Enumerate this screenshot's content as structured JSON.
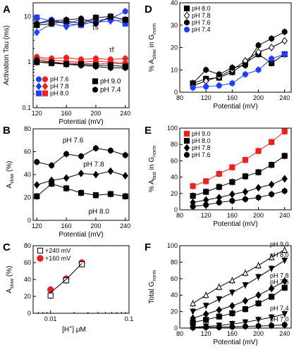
{
  "chart_data": [
    {
      "panel": "A",
      "type": "line",
      "ylabel": "Activation Tau (ms)",
      "xlabel": "Potential (mV)",
      "yscale": "log",
      "ylim": [
        0.1,
        20
      ],
      "xlim": [
        115,
        245
      ],
      "xticks": [
        "120",
        "160",
        "200",
        "240"
      ],
      "yticks": [
        "0.1",
        "1",
        "10"
      ],
      "annotations": {
        "slow": "τs",
        "fast": "τf"
      },
      "legend_left": [
        "pH 7.6",
        "pH 7.8",
        "pH 8.0"
      ],
      "legend_right": [
        "pH 9.0",
        "pH 7.4"
      ],
      "series": [
        {
          "name": "pH 7.6",
          "group": "slow",
          "color": "#1f3fff",
          "marker": "circle",
          "x": [
            120,
            140,
            160,
            180,
            200,
            220,
            240
          ],
          "values": [
            7,
            8.5,
            7,
            8.5,
            8,
            9,
            13
          ]
        },
        {
          "name": "pH 7.8",
          "group": "slow",
          "color": "#1f3fff",
          "marker": "diamond",
          "x": [
            120,
            140,
            160,
            180,
            200,
            220,
            240
          ],
          "values": [
            4.5,
            7,
            6,
            7,
            7.5,
            8,
            8.5
          ]
        },
        {
          "name": "pH 8.0",
          "group": "slow",
          "color": "#1f3fff",
          "marker": "square",
          "x": [
            120,
            140,
            160,
            180,
            200,
            220,
            240
          ],
          "values": [
            9.5,
            8,
            7,
            6.5,
            8,
            9,
            7
          ]
        },
        {
          "name": "pH 9.0",
          "group": "slow",
          "color": "#000000",
          "marker": "square",
          "x": [
            120,
            140,
            160,
            180,
            200,
            220,
            240
          ],
          "values": [
            6.5,
            7,
            8,
            7,
            9.5,
            10,
            8.5
          ]
        },
        {
          "name": "pH 7.4",
          "group": "slow",
          "color": "#000000",
          "marker": "circle",
          "x": [
            120,
            140,
            160,
            180,
            200,
            220,
            240
          ],
          "values": [
            7,
            8,
            8.5,
            9,
            7,
            10,
            8.5
          ]
        },
        {
          "name": "pH 7.6",
          "group": "fast",
          "color": "#e8231f",
          "marker": "circle",
          "x": [
            120,
            140,
            160,
            180,
            200,
            220,
            240
          ],
          "values": [
            1.3,
            1.2,
            1.25,
            1.15,
            1.2,
            1.15,
            1.2
          ]
        },
        {
          "name": "pH 7.8",
          "group": "fast",
          "color": "#e8231f",
          "marker": "diamond",
          "x": [
            120,
            140,
            160,
            180,
            200,
            220,
            240
          ],
          "values": [
            1.2,
            1.1,
            1.05,
            1.0,
            1.05,
            1.0,
            0.95
          ]
        },
        {
          "name": "pH 8.0",
          "group": "fast",
          "color": "#e8231f",
          "marker": "square",
          "x": [
            120,
            140,
            160,
            180,
            200,
            220,
            240
          ],
          "values": [
            1.0,
            1.0,
            0.95,
            0.95,
            0.9,
            0.95,
            0.9
          ]
        },
        {
          "name": "pH 9.0",
          "group": "fast",
          "color": "#000000",
          "marker": "square",
          "x": [
            120,
            140,
            160,
            180,
            200,
            220,
            240
          ],
          "values": [
            1.0,
            0.95,
            0.9,
            0.9,
            0.85,
            0.85,
            0.8
          ]
        },
        {
          "name": "pH 7.4",
          "group": "fast",
          "color": "#000000",
          "marker": "circle",
          "x": [
            120,
            140,
            160,
            180,
            200,
            220,
            240
          ],
          "values": [
            1.1,
            1.0,
            0.9,
            0.85,
            0.8,
            0.75,
            0.75
          ]
        }
      ]
    },
    {
      "panel": "B",
      "type": "line",
      "ylabel": "Aslow (%)",
      "ylabel_main": "A",
      "ylabel_sub": "slow",
      "ylabel_unit": "(%)",
      "xlabel": "Potential (mV)",
      "ylim": [
        0,
        80
      ],
      "xlim": [
        115,
        245
      ],
      "xticks": [
        "120",
        "160",
        "200",
        "240"
      ],
      "yticks": [
        "0",
        "20",
        "40",
        "60",
        "80"
      ],
      "series": [
        {
          "name": "pH 7.6",
          "marker": "circle",
          "x": [
            120,
            140,
            160,
            180,
            200,
            220,
            240
          ],
          "values": [
            51,
            48,
            58,
            56,
            63,
            61,
            57
          ]
        },
        {
          "name": "pH 7.8",
          "marker": "diamond",
          "x": [
            120,
            140,
            160,
            180,
            200,
            220,
            240
          ],
          "values": [
            31,
            35,
            37,
            41,
            40,
            43,
            39
          ]
        },
        {
          "name": "pH 8.0",
          "marker": "square",
          "x": [
            120,
            140,
            160,
            180,
            200,
            220,
            240
          ],
          "values": [
            21,
            32,
            28,
            24,
            22,
            23,
            21
          ]
        }
      ]
    },
    {
      "panel": "C",
      "type": "scatter",
      "ylabel": "Aslow (%)",
      "ylabel_main": "A",
      "ylabel_sub": "slow",
      "ylabel_unit": "(%)",
      "xlabel": "[H+] μM",
      "xlabel_main": "[H",
      "xlabel_sup": "+",
      "xlabel_rest": "]   μM",
      "xscale": "log",
      "xlim": [
        0.006,
        0.1
      ],
      "ylim": [
        0,
        80
      ],
      "xticks": [
        "0.01",
        "0.1"
      ],
      "yticks": [
        "0",
        "20",
        "40",
        "60",
        "80"
      ],
      "series": [
        {
          "name": "+240 mV",
          "marker": "square-open",
          "x": [
            0.01,
            0.0158,
            0.0251
          ],
          "values": [
            21,
            39,
            58
          ]
        },
        {
          "name": "+160 mV",
          "marker": "circle-red",
          "x": [
            0.01,
            0.0158,
            0.0251
          ],
          "values": [
            28,
            41,
            60
          ]
        }
      ]
    },
    {
      "panel": "D",
      "type": "line",
      "ylabel": "% Aslow in Gnorm",
      "ylabel_main": "% A",
      "ylabel_sub": "slow",
      "ylabel_mid": " in G",
      "ylabel_sub2": "norm",
      "xlabel": "Potential (mV)",
      "ylim": [
        0,
        40
      ],
      "xlim": [
        80,
        250
      ],
      "xticks": [
        "80",
        "120",
        "160",
        "200",
        "240"
      ],
      "yticks": [
        "0",
        "10",
        "20",
        "30",
        "40"
      ],
      "series": [
        {
          "name": "pH 8.0",
          "marker": "square",
          "x": [
            100,
            120,
            140,
            160,
            180,
            200,
            220,
            240
          ],
          "values": [
            4,
            6,
            6.5,
            9,
            13,
            17,
            13,
            17
          ]
        },
        {
          "name": "pH 7.8",
          "marker": "diamond-open",
          "x": [
            100,
            120,
            140,
            160,
            180,
            200,
            220,
            240
          ],
          "values": [
            3,
            5,
            7,
            10,
            14,
            18,
            20,
            23
          ]
        },
        {
          "name": "pH 7.6",
          "marker": "circle",
          "x": [
            100,
            120,
            140,
            160,
            180,
            200,
            220,
            240
          ],
          "values": [
            4,
            10,
            8,
            11,
            12,
            21,
            24,
            27
          ]
        },
        {
          "name": "pH 7.4",
          "marker": "circle-blue",
          "x": [
            100,
            120,
            140,
            160,
            180,
            200,
            220,
            240
          ],
          "values": [
            2,
            2.5,
            3,
            4,
            8,
            10,
            15,
            17
          ]
        }
      ]
    },
    {
      "panel": "E",
      "type": "line",
      "ylabel": "% Afast in Gnorm",
      "ylabel_main": "% A",
      "ylabel_sub": "fast",
      "ylabel_mid": " in G",
      "ylabel_sub2": "norm",
      "xlabel": "Potential (mV)",
      "ylim": [
        0,
        100
      ],
      "xlim": [
        80,
        250
      ],
      "xticks": [
        "80",
        "120",
        "160",
        "200",
        "240"
      ],
      "yticks": [
        "0",
        "20",
        "40",
        "60",
        "80",
        "100"
      ],
      "series": [
        {
          "name": "pH 9.0",
          "marker": "square-red",
          "x": [
            100,
            120,
            140,
            160,
            180,
            200,
            220,
            240
          ],
          "values": [
            29,
            35,
            44,
            52,
            61,
            72,
            83,
            96
          ]
        },
        {
          "name": "pH 8.0",
          "marker": "square",
          "x": [
            100,
            120,
            140,
            160,
            180,
            200,
            220,
            240
          ],
          "values": [
            17,
            22,
            28,
            34,
            41,
            46,
            55,
            66
          ]
        },
        {
          "name": "pH 7.8",
          "marker": "diamond",
          "x": [
            100,
            120,
            140,
            160,
            180,
            200,
            220,
            240
          ],
          "values": [
            9,
            12,
            15,
            19,
            22,
            27,
            31,
            38
          ]
        },
        {
          "name": "pH 7.6",
          "marker": "circle",
          "x": [
            100,
            120,
            140,
            160,
            180,
            200,
            220,
            240
          ],
          "values": [
            4,
            6,
            9,
            11,
            13,
            15,
            19,
            23
          ]
        }
      ]
    },
    {
      "panel": "F",
      "type": "line",
      "ylabel": "Total Gnorm",
      "ylabel_main": "Total G",
      "ylabel_sub": "norm",
      "xlabel": "Potential (mV)",
      "ylim": [
        0,
        100
      ],
      "xlim": [
        80,
        250
      ],
      "xticks": [
        "80",
        "120",
        "160",
        "200",
        "240"
      ],
      "yticks": [
        "0",
        "20",
        "40",
        "60",
        "80",
        "100"
      ],
      "series": [
        {
          "name": "pH 9.0",
          "marker": "triangle-open",
          "x": [
            100,
            120,
            140,
            160,
            180,
            200,
            220,
            240
          ],
          "values": [
            30,
            40,
            50,
            58,
            67,
            76,
            86,
            95
          ]
        },
        {
          "name": "pH 8.0",
          "marker": "triangle-down",
          "x": [
            100,
            120,
            140,
            160,
            180,
            200,
            220,
            240
          ],
          "values": [
            20,
            27,
            35,
            43,
            52,
            62,
            72,
            82
          ]
        },
        {
          "name": "pH 7.8",
          "marker": "diamond",
          "x": [
            100,
            120,
            140,
            160,
            180,
            200,
            220,
            240
          ],
          "values": [
            12,
            17,
            22,
            27,
            33,
            40,
            48,
            57
          ]
        },
        {
          "name": "pH 7.6",
          "marker": "square",
          "x": [
            100,
            120,
            140,
            160,
            180,
            200,
            220,
            240
          ],
          "values": [
            7,
            10,
            14,
            18,
            23,
            30,
            38,
            49
          ]
        },
        {
          "name": "pH 7.4",
          "marker": "triangle-down",
          "x": [
            100,
            120,
            140,
            160,
            180,
            200,
            220,
            240
          ],
          "values": [
            1,
            2,
            3,
            5,
            7,
            10,
            13,
            17
          ]
        },
        {
          "name": "pH 7.0",
          "marker": "circle",
          "x": [
            100,
            120,
            140,
            160,
            180,
            200,
            220,
            240
          ],
          "values": [
            0.5,
            1,
            1,
            1.5,
            2,
            2.5,
            3,
            4
          ]
        }
      ]
    }
  ]
}
